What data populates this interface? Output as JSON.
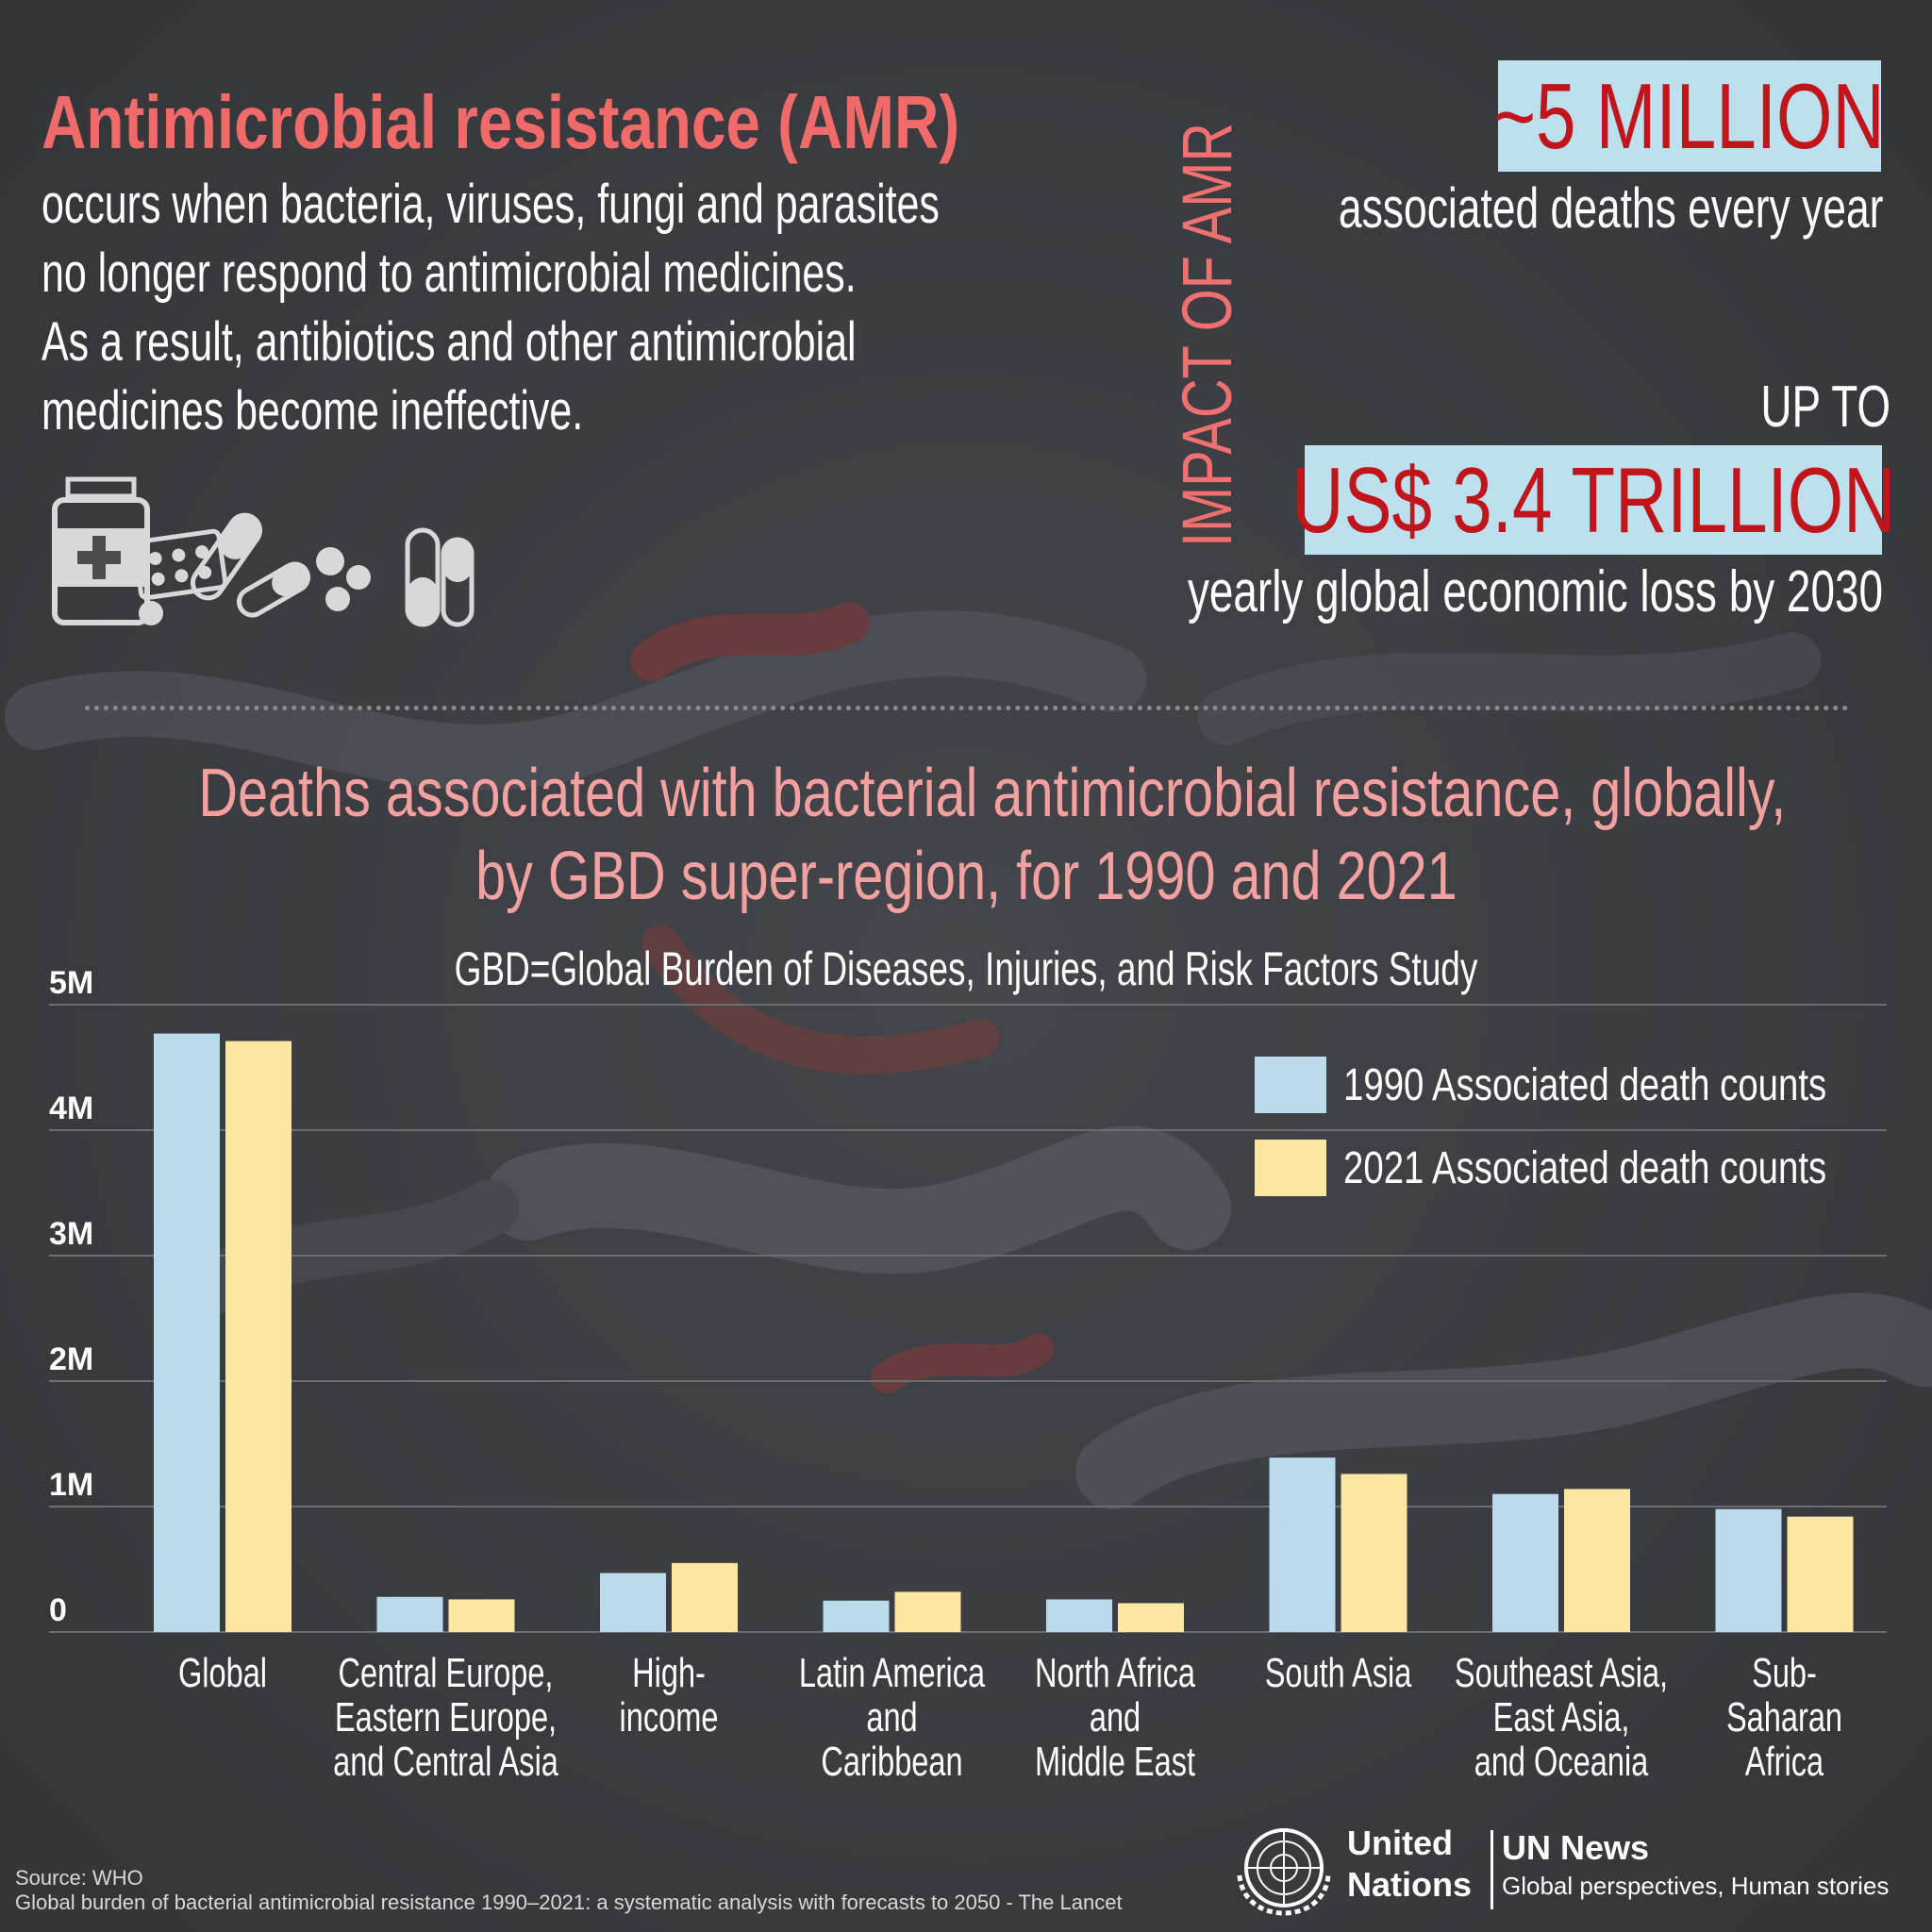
{
  "header": {
    "headline": "Antimicrobial resistance (AMR)",
    "intro_lines": [
      "occurs when bacteria, viruses, fungi and parasites",
      "no longer respond to antimicrobial medicines.",
      "As a result, antibiotics and other antimicrobial",
      "medicines become ineffective."
    ]
  },
  "impact": {
    "label": "IMPACT OF AMR",
    "stat1_value": "~5 MILLION",
    "stat1_caption": "associated deaths every year",
    "stat2_prefix": "UP TO",
    "stat2_value": "US$ 3.4 TRILLION",
    "stat2_caption": "yearly global economic loss by 2030"
  },
  "chart_data": {
    "type": "bar",
    "title_lines": [
      "Deaths associated with bacterial antimicrobial resistance, globally,",
      "by GBD super-region, for 1990 and 2021"
    ],
    "subtitle": "GBD=Global Burden of Diseases, Injuries, and Risk Factors Study",
    "categories": [
      [
        "Global"
      ],
      [
        "Central Europe,",
        "Eastern Europe,",
        "and Central Asia"
      ],
      [
        "High-",
        "income"
      ],
      [
        "Latin America",
        "and",
        "Caribbean"
      ],
      [
        "North Africa",
        "and",
        "Middle East"
      ],
      [
        "South Asia"
      ],
      [
        "Southeast Asia,",
        "East Asia,",
        "and Oceania"
      ],
      [
        "Sub-",
        "Saharan",
        "Africa"
      ]
    ],
    "series": [
      {
        "name": "1990 Associated death counts",
        "color": "#b9dbec",
        "values": [
          4.77,
          0.28,
          0.47,
          0.25,
          0.26,
          1.39,
          1.1,
          0.98
        ]
      },
      {
        "name": "2021 Associated death counts",
        "color": "#fbe6a2",
        "values": [
          4.71,
          0.26,
          0.55,
          0.32,
          0.23,
          1.26,
          1.14,
          0.92
        ]
      }
    ],
    "yticks": [
      "0",
      "1M",
      "2M",
      "3M",
      "4M",
      "5M"
    ],
    "ylim": [
      0,
      5
    ],
    "legend_position": "top-right",
    "grid": true
  },
  "footer": {
    "source_lines": [
      "Source: WHO",
      "Global burden of bacterial antimicrobial resistance 1990–2021: a systematic analysis with forecasts to 2050 - The Lancet"
    ],
    "org_name_lines": [
      "United",
      "Nations"
    ],
    "news_title": "UN News",
    "news_tagline": "Global perspectives, Human stories"
  }
}
